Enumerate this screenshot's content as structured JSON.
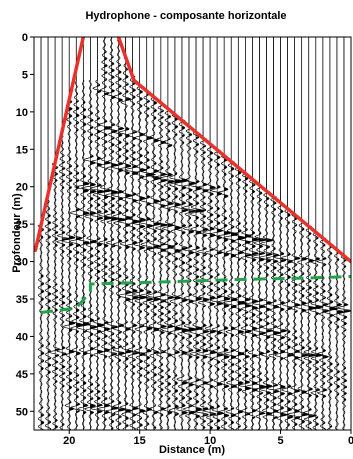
{
  "chart_data": {
    "type": "seismic-section",
    "title": "Hydrophone - composante horizontale",
    "xlabel": "Distance (m)",
    "ylabel": "Profondeur (m)",
    "xlim": [
      22.5,
      0
    ],
    "ylim": [
      0,
      52.5
    ],
    "x_reversed": true,
    "y_reversed": true,
    "x_ticks": [
      20,
      15,
      10,
      5,
      0
    ],
    "x_tick_labels": [
      "20",
      "15",
      "10",
      "5",
      "0"
    ],
    "y_ticks": [
      0,
      5,
      10,
      15,
      20,
      25,
      30,
      35,
      40,
      45,
      50
    ],
    "y_tick_labels": [
      "0",
      "5",
      "10",
      "15",
      "20",
      "25",
      "30",
      "35",
      "40",
      "45",
      "50"
    ],
    "trace_spacing": 0.5,
    "wiggle_color": "#000000",
    "annotations": [
      {
        "name": "red-envelope-left",
        "color": "#e8322b",
        "style": "solid",
        "points": [
          [
            22.4,
            28.5
          ],
          [
            19.0,
            0
          ]
        ]
      },
      {
        "name": "red-envelope-right",
        "color": "#e8322b",
        "style": "solid",
        "points": [
          [
            16.5,
            0
          ],
          [
            15.4,
            5.8
          ],
          [
            0,
            30.0
          ]
        ]
      },
      {
        "name": "green-interface",
        "color": "#22a34a",
        "style": "dashed",
        "points": [
          [
            22.0,
            36.8
          ],
          [
            19.5,
            36.2
          ],
          [
            18.5,
            34.0
          ],
          [
            18.5,
            33.0
          ],
          [
            13.0,
            32.7
          ],
          [
            8.0,
            32.4
          ],
          [
            3.0,
            32.2
          ],
          [
            0,
            32.0
          ]
        ]
      }
    ]
  }
}
